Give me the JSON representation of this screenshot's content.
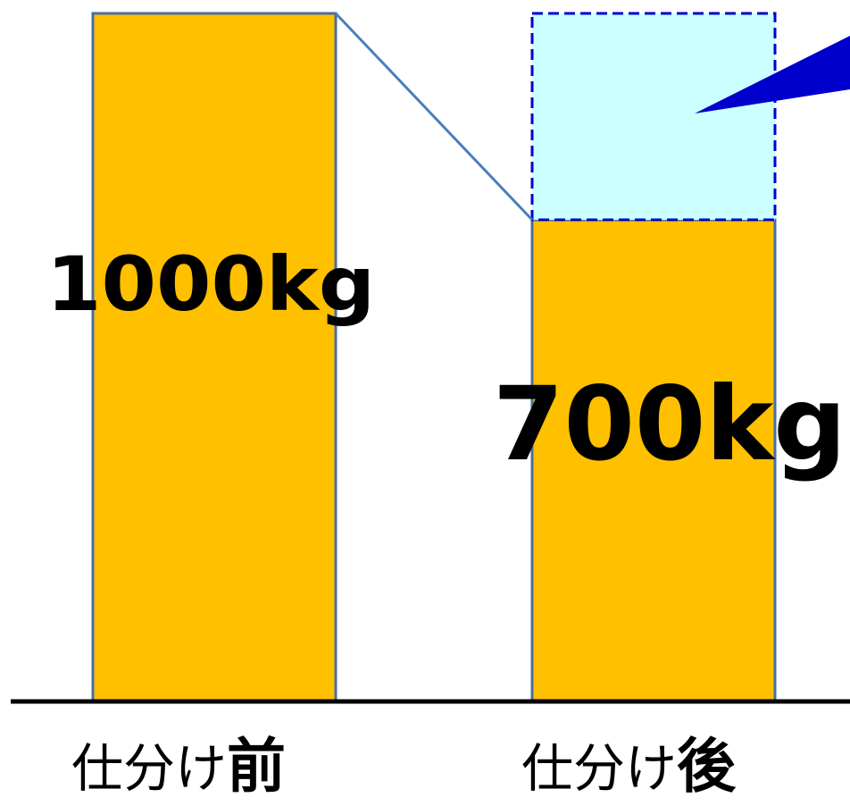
{
  "chart_data": {
    "type": "bar",
    "categories": [
      "仕分け前",
      "仕分け後"
    ],
    "category_parts": [
      {
        "prefix": "仕分け",
        "emphasis": "前"
      },
      {
        "prefix": "仕分け",
        "emphasis": "後"
      }
    ],
    "values": [
      1000,
      700
    ],
    "unit": "kg",
    "data_labels": [
      "1000kg",
      "700kg"
    ],
    "removed_portion": {
      "category": "仕分け後",
      "value": 300,
      "style": "dashed-outline"
    },
    "ylim": [
      0,
      1000
    ],
    "grid": false,
    "legend": "none"
  },
  "colors": {
    "bar_fill": "#FFC000",
    "bar_stroke": "#4A6EA0",
    "removed_fill": "#CCFFFF",
    "removed_stroke": "#0000CC",
    "callout_fill": "#0000CC",
    "connector": "#4A7EBB",
    "baseline": "#000000",
    "text": "#000000"
  }
}
